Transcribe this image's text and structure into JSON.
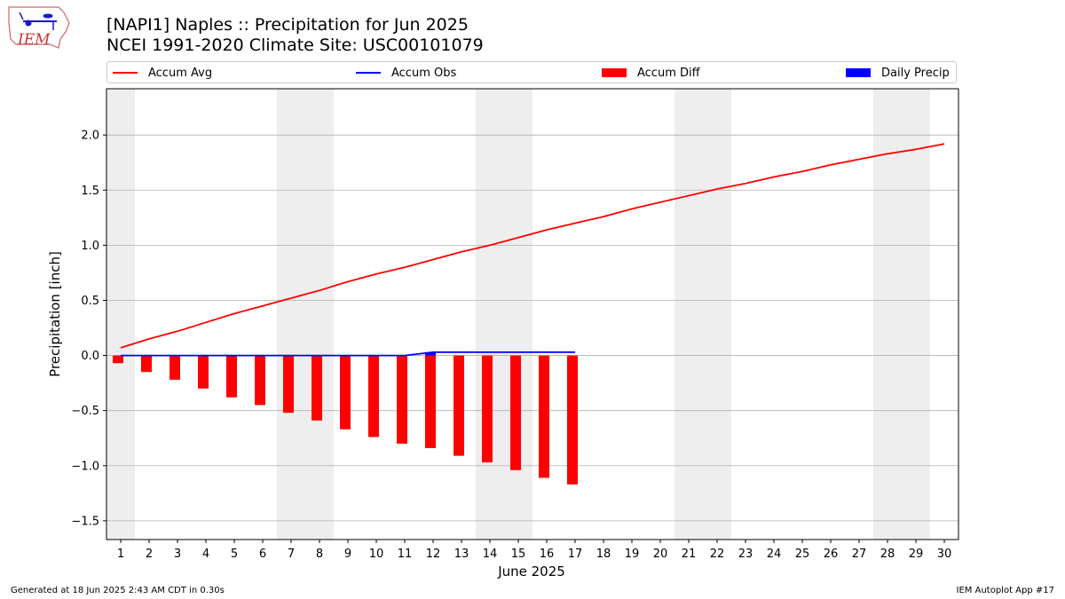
{
  "logo": {
    "text": "IEM"
  },
  "title_line1": "[NAPI1] Naples :: Precipitation for Jun 2025",
  "title_line2": "NCEI 1991-2020 Climate Site: USC00101079",
  "legend": [
    {
      "label": "Accum Avg",
      "color": "#ff0000",
      "kind": "line"
    },
    {
      "label": "Accum Obs",
      "color": "#0000ff",
      "kind": "line"
    },
    {
      "label": "Accum Diff",
      "color": "#ff0000",
      "kind": "bar"
    },
    {
      "label": "Daily Precip",
      "color": "#0000ff",
      "kind": "bar"
    }
  ],
  "footer_left": "Generated at 18 Jun 2025 2:43 AM CDT in 0.30s",
  "footer_right": "IEM Autoplot App #17",
  "chart_data": {
    "type": "bar",
    "xlabel": "June 2025",
    "ylabel": "Precipitation [inch]",
    "xlim": [
      0.5,
      30.5
    ],
    "ylim": [
      -1.67,
      2.42
    ],
    "x_ticks": [
      1,
      2,
      3,
      4,
      5,
      6,
      7,
      8,
      9,
      10,
      11,
      12,
      13,
      14,
      15,
      16,
      17,
      18,
      19,
      20,
      21,
      22,
      23,
      24,
      25,
      26,
      27,
      28,
      29,
      30
    ],
    "y_ticks": [
      -1.5,
      -1.0,
      -0.5,
      0.0,
      0.5,
      1.0,
      1.5,
      2.0
    ],
    "y_tick_labels": [
      "−1.5",
      "−1.0",
      "−0.5",
      "0.0",
      "0.5",
      "1.0",
      "1.5",
      "2.0"
    ],
    "grid": "horizontal",
    "weekend_shading": [
      [
        0.5,
        1.5
      ],
      [
        6.5,
        8.5
      ],
      [
        13.5,
        15.5
      ],
      [
        20.5,
        22.5
      ],
      [
        27.5,
        29.5
      ]
    ],
    "colors": {
      "avg": "#ff0000",
      "obs": "#0000ff",
      "diff": "#ff0000",
      "daily": "#0000ff",
      "shade": "#eeeeee",
      "grid": "#b0b0b0"
    },
    "accum_avg": {
      "days": [
        1,
        2,
        3,
        4,
        5,
        6,
        7,
        8,
        9,
        10,
        11,
        12,
        13,
        14,
        15,
        16,
        17,
        18,
        19,
        20,
        21,
        22,
        23,
        24,
        25,
        26,
        27,
        28,
        29,
        30
      ],
      "values": [
        0.07,
        0.15,
        0.22,
        0.3,
        0.38,
        0.45,
        0.52,
        0.59,
        0.67,
        0.74,
        0.8,
        0.87,
        0.94,
        1.0,
        1.07,
        1.14,
        1.2,
        1.26,
        1.33,
        1.39,
        1.45,
        1.51,
        1.56,
        1.62,
        1.67,
        1.73,
        1.78,
        1.83,
        1.87,
        1.92
      ]
    },
    "accum_obs": {
      "days": [
        1,
        2,
        3,
        4,
        5,
        6,
        7,
        8,
        9,
        10,
        11,
        12,
        13,
        14,
        15,
        16,
        17
      ],
      "values": [
        0,
        0,
        0,
        0,
        0,
        0,
        0,
        0,
        0,
        0,
        0,
        0.03,
        0.03,
        0.03,
        0.03,
        0.03,
        0.03
      ]
    },
    "accum_diff": {
      "days": [
        1,
        2,
        3,
        4,
        5,
        6,
        7,
        8,
        9,
        10,
        11,
        12,
        13,
        14,
        15,
        16,
        17
      ],
      "values": [
        -0.07,
        -0.15,
        -0.22,
        -0.3,
        -0.38,
        -0.45,
        -0.52,
        -0.59,
        -0.67,
        -0.74,
        -0.8,
        -0.84,
        -0.91,
        -0.97,
        -1.04,
        -1.11,
        -1.17
      ]
    },
    "daily_precip": {
      "days": [
        12
      ],
      "values": [
        0.03
      ]
    }
  }
}
